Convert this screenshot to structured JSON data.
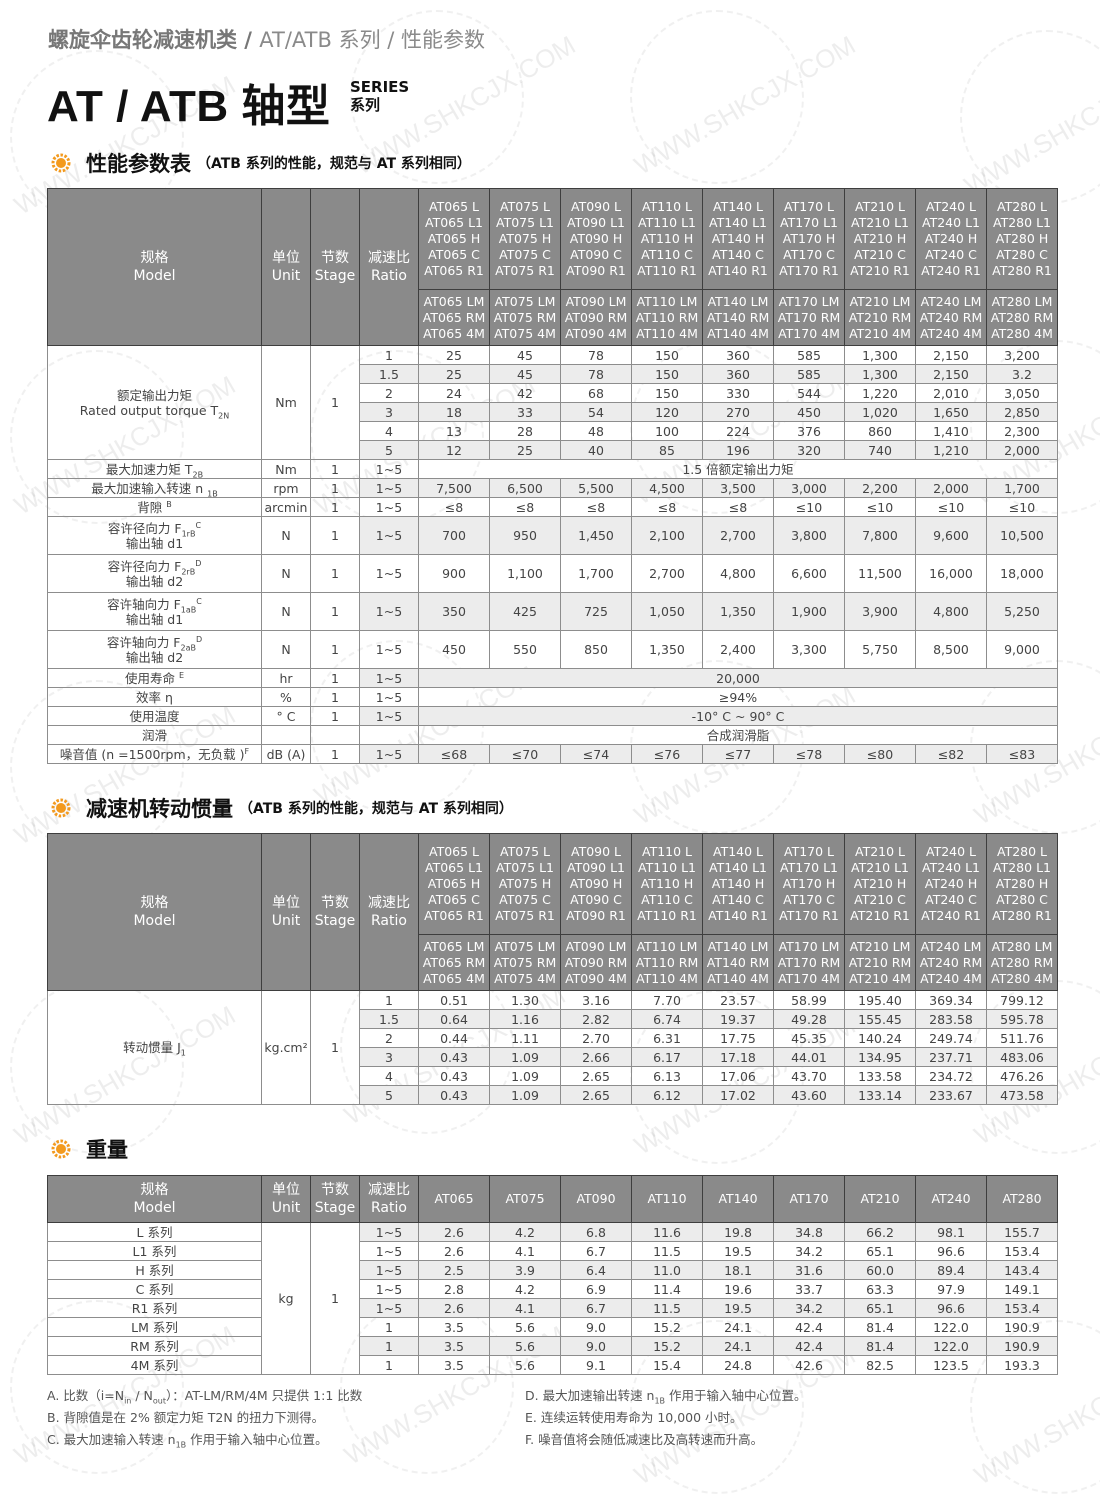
{
  "breadcrumb": {
    "category": "螺旋伞齿轮减速机类",
    "separator": " / ",
    "series": "AT/ATB 系列",
    "page": "性能参数"
  },
  "page_title": "AT / ATB 轴型",
  "series_label": {
    "en": "SERIES",
    "zh": "系列"
  },
  "watermark": "WWW.SHKCJX.COM",
  "accent_color": "#f39a1e",
  "header_color": "#8a8a8a",
  "common_headers": {
    "model": "规格",
    "model_en": "Model",
    "unit": "单位",
    "unit_en": "Unit",
    "stage": "节数",
    "stage_en": "Stage",
    "ratio": "减速比",
    "ratio_en": "Ratio"
  },
  "model_groups": [
    {
      "upper": "AT065 L\nAT065 L1\nAT065 H\nAT065 C\nAT065 R1",
      "lower": "AT065 LM\nAT065 RM\nAT065 4M"
    },
    {
      "upper": "AT075 L\nAT075 L1\nAT075 H\nAT075 C\nAT075 R1",
      "lower": "AT075 LM\nAT075 RM\nAT075 4M"
    },
    {
      "upper": "AT090 L\nAT090 L1\nAT090 H\nAT090 C\nAT090 R1",
      "lower": "AT090 LM\nAT090 RM\nAT090 4M"
    },
    {
      "upper": "AT110 L\nAT110 L1\nAT110 H\nAT110 C\nAT110 R1",
      "lower": "AT110 LM\nAT110 RM\nAT110 4M"
    },
    {
      "upper": "AT140 L\nAT140 L1\nAT140 H\nAT140 C\nAT140 R1",
      "lower": "AT140 LM\nAT140 RM\nAT140 4M"
    },
    {
      "upper": "AT170 L\nAT170 L1\nAT170 H\nAT170 C\nAT170 R1",
      "lower": "AT170 LM\nAT170 RM\nAT170 4M"
    },
    {
      "upper": "AT210 L\nAT210 L1\nAT210 H\nAT210 C\nAT210 R1",
      "lower": "AT210 LM\nAT210 RM\nAT210 4M"
    },
    {
      "upper": "AT240 L\nAT240 L1\nAT240 H\nAT240 C\nAT240 R1",
      "lower": "AT240 LM\nAT240 RM\nAT240 4M"
    },
    {
      "upper": "AT280 L\nAT280 L1\nAT280 H\nAT280 C\nAT280 R1",
      "lower": "AT280 LM\nAT280 RM\nAT280 4M"
    }
  ],
  "performance": {
    "title": "性能参数表",
    "note": "（ATB 系列的性能，规范与 AT 系列相同）",
    "torque": {
      "label": "额定输出力矩",
      "label_en": "Rated output torque T",
      "label_en_sub": "2N",
      "unit": "Nm",
      "stage": "1",
      "rows": [
        {
          "ratio": "1",
          "values": [
            "25",
            "45",
            "78",
            "150",
            "360",
            "585",
            "1,300",
            "2,150",
            "3,200"
          ]
        },
        {
          "ratio": "1.5",
          "values": [
            "25",
            "45",
            "78",
            "150",
            "360",
            "585",
            "1,300",
            "2,150",
            "3.2"
          ]
        },
        {
          "ratio": "2",
          "values": [
            "24",
            "42",
            "68",
            "150",
            "330",
            "544",
            "1,220",
            "2,010",
            "3,050"
          ]
        },
        {
          "ratio": "3",
          "values": [
            "18",
            "33",
            "54",
            "120",
            "270",
            "450",
            "1,020",
            "1,650",
            "2,850"
          ]
        },
        {
          "ratio": "4",
          "values": [
            "13",
            "28",
            "48",
            "100",
            "224",
            "376",
            "860",
            "1,410",
            "2,300"
          ]
        },
        {
          "ratio": "5",
          "values": [
            "12",
            "25",
            "40",
            "85",
            "196",
            "320",
            "740",
            "1,210",
            "2,000"
          ]
        }
      ]
    },
    "rows": [
      {
        "label": "最大加速力矩 T",
        "sub": "2B",
        "sup": "",
        "line2": "",
        "unit": "Nm",
        "stage": "1",
        "ratio": "1~5",
        "span": "1.5 倍额定输出力矩"
      },
      {
        "label": "最大加速输入转速 n ",
        "sub": "1B",
        "sup": "",
        "line2": "",
        "unit": "rpm",
        "stage": "1",
        "ratio": "1~5",
        "values": [
          "7,500",
          "6,500",
          "5,500",
          "4,500",
          "3,500",
          "3,000",
          "2,200",
          "2,000",
          "1,700"
        ]
      },
      {
        "label": "背隙 ",
        "sub": "",
        "sup": "B",
        "line2": "",
        "unit": "arcmin",
        "stage": "1",
        "ratio": "1~5",
        "values": [
          "≤8",
          "≤8",
          "≤8",
          "≤8",
          "≤8",
          "≤10",
          "≤10",
          "≤10",
          "≤10"
        ]
      },
      {
        "label": "容许径向力 F",
        "sub": "1rB",
        "sup": "C",
        "line2": "输出轴 d1",
        "unit": "N",
        "stage": "1",
        "ratio": "1~5",
        "values": [
          "700",
          "950",
          "1,450",
          "2,100",
          "2,700",
          "3,800",
          "7,800",
          "9,600",
          "10,500"
        ]
      },
      {
        "label": "容许径向力 F",
        "sub": "2rB",
        "sup": "D",
        "line2": "输出轴 d2",
        "unit": "N",
        "stage": "1",
        "ratio": "1~5",
        "values": [
          "900",
          "1,100",
          "1,700",
          "2,700",
          "4,800",
          "6,600",
          "11,500",
          "16,000",
          "18,000"
        ]
      },
      {
        "label": "容许轴向力 F",
        "sub": "1aB",
        "sup": "C",
        "line2": "输出轴 d1",
        "unit": "N",
        "stage": "1",
        "ratio": "1~5",
        "values": [
          "350",
          "425",
          "725",
          "1,050",
          "1,350",
          "1,900",
          "3,900",
          "4,800",
          "5,250"
        ]
      },
      {
        "label": "容许轴向力 F",
        "sub": "2aB",
        "sup": "D",
        "line2": "输出轴 d2",
        "unit": "N",
        "stage": "1",
        "ratio": "1~5",
        "values": [
          "450",
          "550",
          "850",
          "1,350",
          "2,400",
          "3,300",
          "5,750",
          "8,500",
          "9,000"
        ]
      },
      {
        "label": "使用寿命 ",
        "sub": "",
        "sup": "E",
        "line2": "",
        "unit": "hr",
        "stage": "1",
        "ratio": "1~5",
        "span": "20,000"
      },
      {
        "label": "效率 η",
        "sub": "",
        "sup": "",
        "line2": "",
        "unit": "%",
        "stage": "1",
        "ratio": "1~5",
        "span": "≥94%"
      },
      {
        "label": "使用温度",
        "sub": "",
        "sup": "",
        "line2": "",
        "unit": "° C",
        "stage": "1",
        "ratio": "1~5",
        "span": "-10° C ~ 90° C"
      },
      {
        "label": "润滑",
        "sub": "",
        "sup": "",
        "line2": "",
        "unit": "",
        "stage": "",
        "ratio": "",
        "span": "合成润滑脂"
      },
      {
        "label": "噪音值 (n =1500rpm，无负载 )",
        "sub": "",
        "sup": "F",
        "line2": "",
        "unit": "dB (A)",
        "stage": "1",
        "ratio": "1~5",
        "values": [
          "≤68",
          "≤70",
          "≤74",
          "≤76",
          "≤77",
          "≤78",
          "≤80",
          "≤82",
          "≤83"
        ]
      }
    ]
  },
  "inertia": {
    "title": "减速机转动惯量",
    "note": "（ATB 系列的性能，规范与 AT 系列相同）",
    "label": "转动惯量 J",
    "label_sub": "1",
    "unit": "kg.cm²",
    "stage": "1",
    "rows": [
      {
        "ratio": "1",
        "values": [
          "0.51",
          "1.30",
          "3.16",
          "7.70",
          "23.57",
          "58.99",
          "195.40",
          "369.34",
          "799.12"
        ]
      },
      {
        "ratio": "1.5",
        "values": [
          "0.64",
          "1.16",
          "2.82",
          "6.74",
          "19.37",
          "49.28",
          "155.45",
          "283.58",
          "595.78"
        ]
      },
      {
        "ratio": "2",
        "values": [
          "0.44",
          "1.11",
          "2.70",
          "6.31",
          "17.75",
          "45.35",
          "140.24",
          "249.74",
          "511.76"
        ]
      },
      {
        "ratio": "3",
        "values": [
          "0.43",
          "1.09",
          "2.66",
          "6.17",
          "17.18",
          "44.01",
          "134.95",
          "237.71",
          "483.06"
        ]
      },
      {
        "ratio": "4",
        "values": [
          "0.43",
          "1.09",
          "2.65",
          "6.13",
          "17.06",
          "43.70",
          "133.58",
          "234.72",
          "476.26"
        ]
      },
      {
        "ratio": "5",
        "values": [
          "0.43",
          "1.09",
          "2.65",
          "6.12",
          "17.02",
          "43.60",
          "133.14",
          "233.67",
          "473.58"
        ]
      }
    ]
  },
  "weight": {
    "title": "重量",
    "models": [
      "AT065",
      "AT075",
      "AT090",
      "AT110",
      "AT140",
      "AT170",
      "AT210",
      "AT240",
      "AT280"
    ],
    "unit": "kg",
    "stage": "1",
    "rows": [
      {
        "label": "L 系列",
        "ratio": "1~5",
        "values": [
          "2.6",
          "4.2",
          "6.8",
          "11.6",
          "19.8",
          "34.8",
          "66.2",
          "98.1",
          "155.7"
        ]
      },
      {
        "label": "L1 系列",
        "ratio": "1~5",
        "values": [
          "2.6",
          "4.1",
          "6.7",
          "11.5",
          "19.5",
          "34.2",
          "65.1",
          "96.6",
          "153.4"
        ]
      },
      {
        "label": "H 系列",
        "ratio": "1~5",
        "values": [
          "2.5",
          "3.9",
          "6.4",
          "11.0",
          "18.1",
          "31.6",
          "60.0",
          "89.4",
          "143.4"
        ]
      },
      {
        "label": "C 系列",
        "ratio": "1~5",
        "values": [
          "2.8",
          "4.2",
          "6.9",
          "11.4",
          "19.6",
          "33.7",
          "63.3",
          "97.9",
          "149.1"
        ]
      },
      {
        "label": "R1 系列",
        "ratio": "1~5",
        "values": [
          "2.6",
          "4.1",
          "6.7",
          "11.5",
          "19.5",
          "34.2",
          "65.1",
          "96.6",
          "153.4"
        ]
      },
      {
        "label": "LM 系列",
        "ratio": "1",
        "values": [
          "3.5",
          "5.6",
          "9.0",
          "15.2",
          "24.1",
          "42.4",
          "81.4",
          "122.0",
          "190.9"
        ]
      },
      {
        "label": "RM 系列",
        "ratio": "1",
        "values": [
          "3.5",
          "5.6",
          "9.0",
          "15.2",
          "24.1",
          "42.4",
          "81.4",
          "122.0",
          "190.9"
        ]
      },
      {
        "label": "4M 系列",
        "ratio": "1",
        "values": [
          "3.5",
          "5.6",
          "9.1",
          "15.4",
          "24.8",
          "42.6",
          "82.5",
          "123.5",
          "193.3"
        ]
      }
    ]
  },
  "footnotes": [
    [
      {
        "t": "A. 比数（i=N"
      },
      {
        "sub": "in"
      },
      {
        "t": " / N"
      },
      {
        "sub": "out"
      },
      {
        "t": "）：AT-LM/RM/4M 只提供 1:1 比数"
      }
    ],
    [
      {
        "t": "B. 背隙值是在 2% 额定力矩 T2N  的扭力下测得。"
      }
    ],
    [
      {
        "t": "C. 最大加速输入转速 n"
      },
      {
        "sub": "1B"
      },
      {
        "t": "  作用于输入轴中心位置。"
      }
    ],
    [
      {
        "t": "D. 最大加速输出转速 n"
      },
      {
        "sub": "1B"
      },
      {
        "t": " 作用于输入轴中心位置。"
      }
    ],
    [
      {
        "t": "E. 连续运转使用寿命为 10,000 小时。"
      }
    ],
    [
      {
        "t": "F. 噪音值将会随低减速比及高转速而升高。"
      }
    ]
  ]
}
